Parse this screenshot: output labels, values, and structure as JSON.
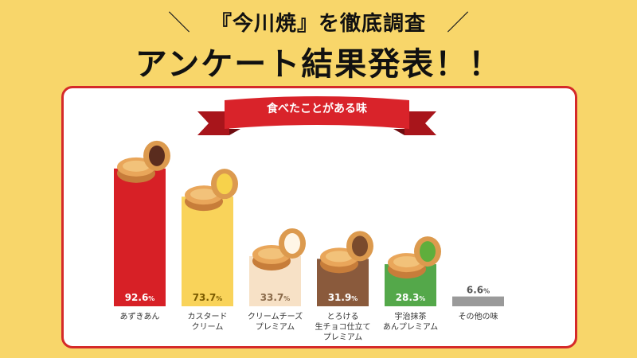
{
  "header": {
    "line1": "『今川焼』を徹底調査",
    "line2": "アンケート結果発表！！",
    "slash_left": "＼",
    "slash_right": "／"
  },
  "ribbon_label": "食べたことがある味",
  "colors": {
    "background": "#f8d66a",
    "panel_border": "#d52a2a",
    "ribbon": "#d9232a"
  },
  "chart_data": {
    "type": "bar",
    "title": "食べたことがある味",
    "categories": [
      [
        "あずきあん"
      ],
      [
        "カスタード",
        "クリーム"
      ],
      [
        "クリームチーズ",
        "プレミアム"
      ],
      [
        "とろける",
        "生チョコ仕立て",
        "プレミアム"
      ],
      [
        "宇治抹茶",
        "あんプレミアム"
      ],
      [
        "その他の味"
      ]
    ],
    "values": [
      92.6,
      73.7,
      33.7,
      31.9,
      28.3,
      6.6
    ],
    "value_labels": [
      "92.6",
      "73.7",
      "33.7",
      "31.9",
      "28.3",
      "6.6"
    ],
    "unit": "%",
    "bar_colors": [
      "#d72026",
      "#f9d35a",
      "#f7e1c6",
      "#8a5a3c",
      "#54a84a",
      "#9a9a9a"
    ],
    "label_colors": [
      "#ffffff",
      "#7a5a00",
      "#8a6a4a",
      "#ffffff",
      "#ffffff",
      "#555555"
    ],
    "ylim": [
      0,
      100
    ]
  }
}
